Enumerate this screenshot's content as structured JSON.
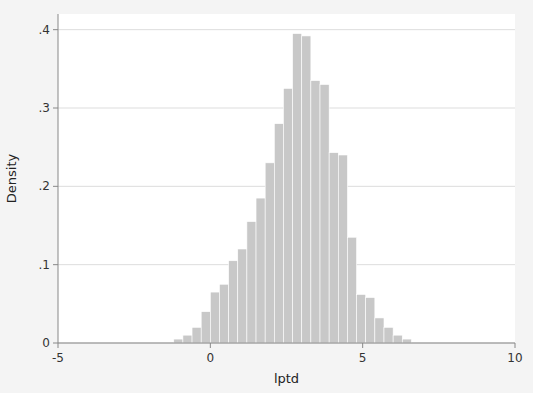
{
  "chart_data": {
    "type": "histogram",
    "xlabel": "lptd",
    "ylabel": "Density",
    "bins": [
      -1.2,
      -0.9,
      -0.6,
      -0.3,
      0,
      0.3,
      0.6,
      0.9,
      1.2,
      1.5,
      1.8,
      2.1,
      2.4,
      2.7,
      3.0,
      3.3,
      3.6,
      3.9,
      4.2,
      4.5,
      4.8,
      5.1,
      5.4,
      5.7,
      6.0,
      6.3,
      6.6
    ],
    "values": [
      0.005,
      0.01,
      0.02,
      0.04,
      0.065,
      0.075,
      0.105,
      0.12,
      0.155,
      0.185,
      0.23,
      0.28,
      0.325,
      0.395,
      0.392,
      0.335,
      0.33,
      0.243,
      0.24,
      0.135,
      0.062,
      0.058,
      0.032,
      0.02,
      0.01,
      0.005
    ],
    "color": "#c8c8c8",
    "xlim": [
      -5,
      10
    ],
    "ylim": [
      0,
      0.42
    ],
    "xticks": [
      -5,
      0,
      5,
      10
    ],
    "yticks": [
      0,
      {
        "value": 0.1,
        "label": ".1"
      },
      {
        "value": 0.2,
        "label": ".2"
      },
      {
        "value": 0.3,
        "label": ".3"
      },
      {
        "value": 0.4,
        "label": ".4"
      }
    ],
    "grid": true
  }
}
